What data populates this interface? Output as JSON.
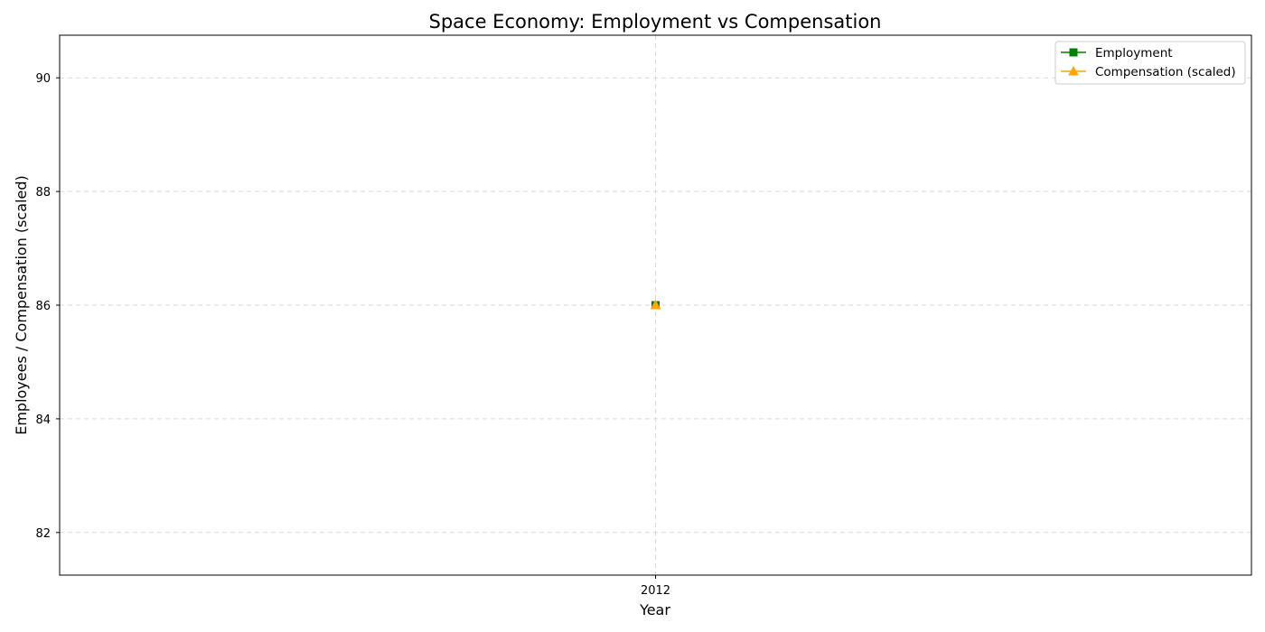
{
  "chart_data": {
    "type": "line",
    "title": "Space Economy: Employment vs Compensation",
    "xlabel": "Year",
    "ylabel": "Employees / Compensation (scaled)",
    "categories": [
      "2012"
    ],
    "ylim": [
      81.25,
      90.75
    ],
    "yticks": [
      82,
      84,
      86,
      88,
      90
    ],
    "grid": true,
    "legend_position": "top-right",
    "series": [
      {
        "name": "Employment",
        "values": [
          86
        ],
        "color": "#008000",
        "marker": "square"
      },
      {
        "name": "Compensation (scaled)",
        "values": [
          86
        ],
        "color": "#ffa500",
        "marker": "triangle"
      }
    ]
  }
}
